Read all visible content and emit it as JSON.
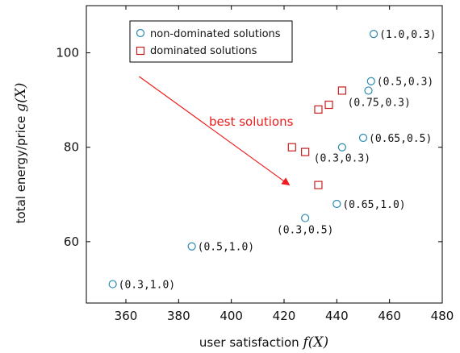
{
  "chart_data": {
    "type": "scatter",
    "xlim": [
      345,
      480
    ],
    "ylim": [
      47,
      110
    ],
    "x_ticks": [
      360,
      380,
      400,
      420,
      440,
      460,
      480
    ],
    "y_ticks": [
      60,
      80,
      100
    ],
    "x_tick_labels": [
      "360",
      "380",
      "400",
      "420",
      "440",
      "460",
      "480"
    ],
    "y_tick_labels": [
      "60",
      "80",
      "100"
    ],
    "xlabel_text": "user satisfaction ",
    "xlabel_math": "f(X)",
    "ylabel_text": "total energy/price ",
    "ylabel_math": "g(X)",
    "grid": false,
    "legend_position": "top-left",
    "series": [
      {
        "name": "non-dominated solutions",
        "marker": "circle",
        "color": "#2a8ab0",
        "points": [
          {
            "x": 355,
            "y": 51,
            "label": "(0.3,1.0)"
          },
          {
            "x": 385,
            "y": 59,
            "label": "(0.5,1.0)"
          },
          {
            "x": 428,
            "y": 65,
            "label": "(0.3,0.5)"
          },
          {
            "x": 440,
            "y": 68,
            "label": "(0.65,1.0)"
          },
          {
            "x": 442,
            "y": 80,
            "label": "(0.3,0.3)"
          },
          {
            "x": 450,
            "y": 82,
            "label": "(0.65,0.5)"
          },
          {
            "x": 452,
            "y": 92,
            "label": "(0.75,0.3)"
          },
          {
            "x": 453,
            "y": 94,
            "label": "(0.5,0.3)"
          },
          {
            "x": 454,
            "y": 104,
            "label": "(1.0,0.3)"
          }
        ]
      },
      {
        "name": "dominated solutions",
        "marker": "square",
        "color": "#c81e1e",
        "points": [
          {
            "x": 423,
            "y": 80
          },
          {
            "x": 428,
            "y": 79
          },
          {
            "x": 433,
            "y": 72
          },
          {
            "x": 433,
            "y": 88
          },
          {
            "x": 437,
            "y": 89
          },
          {
            "x": 442,
            "y": 92
          }
        ]
      }
    ],
    "annotation": {
      "text": "best solutions",
      "color": "#ee1c1c",
      "arrow_from": [
        365,
        95
      ],
      "arrow_to": [
        422,
        72
      ]
    }
  }
}
